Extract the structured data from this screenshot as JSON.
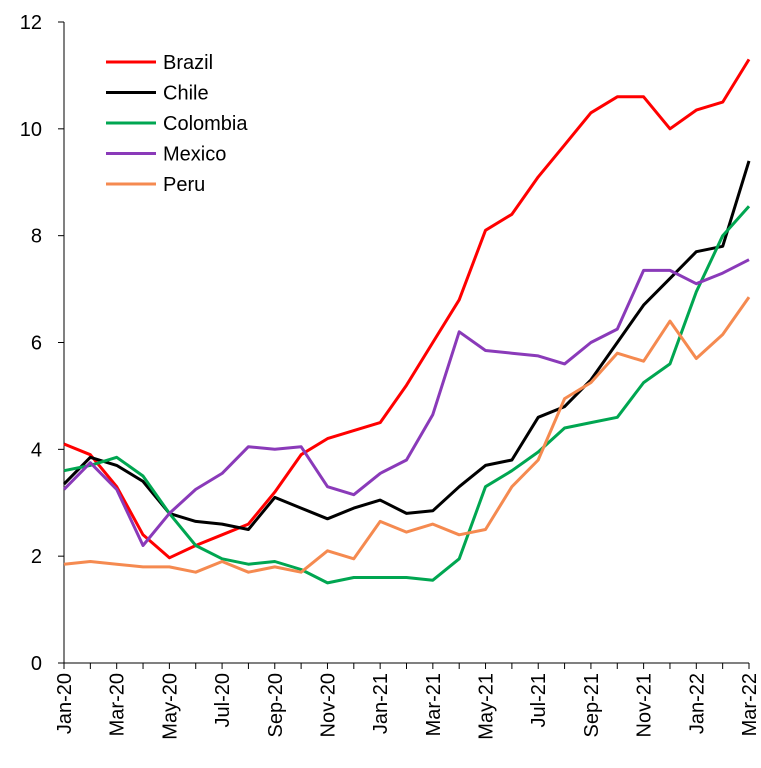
{
  "chart_data": {
    "type": "line",
    "categories": [
      "Jan-20",
      null,
      "Mar-20",
      null,
      "May-20",
      null,
      "Jul-20",
      null,
      "Sep-20",
      null,
      "Nov-20",
      null,
      "Jan-21",
      null,
      "Mar-21",
      null,
      "May-21",
      null,
      "Jul-21",
      null,
      "Sep-21",
      null,
      "Nov-21",
      null,
      "Jan-22",
      null,
      "Mar-22"
    ],
    "series": [
      {
        "name": "Brazil",
        "color": "#ff0000",
        "values": [
          4.1,
          3.9,
          3.3,
          2.4,
          1.97,
          2.2,
          2.4,
          2.6,
          3.2,
          3.9,
          4.2,
          4.35,
          4.5,
          5.2,
          6.0,
          6.8,
          8.1,
          8.4,
          9.1,
          9.7,
          10.3,
          10.6,
          10.6,
          10.0,
          10.35,
          10.5,
          11.3
        ]
      },
      {
        "name": "Chile",
        "color": "#000000",
        "values": [
          3.35,
          3.85,
          3.7,
          3.4,
          2.8,
          2.65,
          2.6,
          2.5,
          3.1,
          2.9,
          2.7,
          2.9,
          3.05,
          2.8,
          2.85,
          3.3,
          3.7,
          3.8,
          4.6,
          4.8,
          5.3,
          6.0,
          6.7,
          7.2,
          7.7,
          7.8,
          9.4
        ]
      },
      {
        "name": "Colombia",
        "color": "#00a651",
        "values": [
          3.6,
          3.7,
          3.85,
          3.5,
          2.8,
          2.2,
          1.95,
          1.85,
          1.9,
          1.75,
          1.5,
          1.6,
          1.6,
          1.6,
          1.55,
          1.95,
          3.3,
          3.6,
          3.95,
          4.4,
          4.5,
          4.6,
          5.25,
          5.6,
          6.95,
          8.0,
          8.55
        ]
      },
      {
        "name": "Mexico",
        "color": "#8a3ab9",
        "values": [
          3.25,
          3.75,
          3.25,
          2.2,
          2.8,
          3.25,
          3.55,
          4.05,
          4.0,
          4.05,
          3.3,
          3.15,
          3.55,
          3.8,
          4.65,
          6.2,
          5.85,
          5.8,
          5.75,
          5.6,
          6.0,
          6.25,
          7.35,
          7.35,
          7.1,
          7.3,
          7.55
        ]
      },
      {
        "name": "Peru",
        "color": "#f58a50",
        "values": [
          1.85,
          1.9,
          1.85,
          1.8,
          1.8,
          1.7,
          1.9,
          1.7,
          1.8,
          1.7,
          2.1,
          1.95,
          2.65,
          2.45,
          2.6,
          2.4,
          2.5,
          3.3,
          3.8,
          4.95,
          5.25,
          5.8,
          5.65,
          6.4,
          5.7,
          6.15,
          6.85
        ]
      }
    ],
    "ylim": [
      0,
      12
    ],
    "yticks": [
      0,
      2,
      4,
      6,
      8,
      10,
      12
    ],
    "legend": "upper-left"
  }
}
